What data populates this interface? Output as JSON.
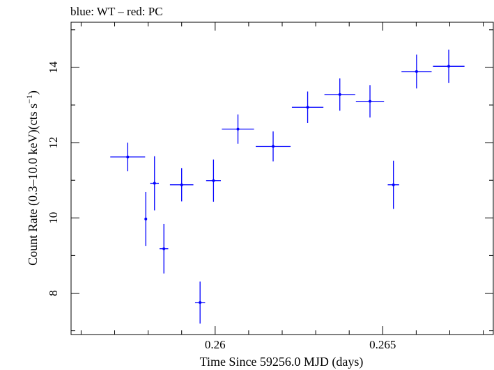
{
  "chart_data": {
    "type": "scatter",
    "title": "blue: WT – red: PC",
    "xlabel": "Time Since 59256.0 MJD (days)",
    "ylabel_main": "Count Rate (0.3–10.0 keV)(cts s",
    "ylabel_sup": "−1",
    "ylabel_close": ")",
    "xlim": [
      0.2557,
      0.2683
    ],
    "ylim": [
      6.9,
      15.2
    ],
    "x_ticks": [
      {
        "value": 0.26,
        "label": "0.26"
      },
      {
        "value": 0.265,
        "label": "0.265"
      }
    ],
    "x_minor_ticks": [
      0.256,
      0.257,
      0.258,
      0.259,
      0.261,
      0.262,
      0.263,
      0.264,
      0.266,
      0.267,
      0.268
    ],
    "y_ticks": [
      {
        "value": 8,
        "label": "8"
      },
      {
        "value": 10,
        "label": "10"
      },
      {
        "value": 12,
        "label": "12"
      },
      {
        "value": 14,
        "label": "14"
      }
    ],
    "y_minor_ticks": [
      7,
      9,
      11,
      13,
      15
    ],
    "grid": false,
    "series": [
      {
        "color": "#0000ff",
        "points": [
          {
            "x": 0.25739,
            "xerr": 0.00052,
            "y": 11.62,
            "yerr": 0.38
          },
          {
            "x": 0.25793,
            "xerr": 3e-05,
            "y": 9.97,
            "yerr": 0.72
          },
          {
            "x": 0.25819,
            "xerr": 0.00013,
            "y": 10.92,
            "yerr": 0.72
          },
          {
            "x": 0.25847,
            "xerr": 0.00013,
            "y": 9.18,
            "yerr": 0.66
          },
          {
            "x": 0.259,
            "xerr": 0.00035,
            "y": 10.88,
            "yerr": 0.44
          },
          {
            "x": 0.25955,
            "xerr": 0.00015,
            "y": 7.75,
            "yerr": 0.56
          },
          {
            "x": 0.25995,
            "xerr": 0.00022,
            "y": 10.99,
            "yerr": 0.56
          },
          {
            "x": 0.26068,
            "xerr": 0.00048,
            "y": 12.36,
            "yerr": 0.39
          },
          {
            "x": 0.26173,
            "xerr": 0.00052,
            "y": 11.9,
            "yerr": 0.4
          },
          {
            "x": 0.26276,
            "xerr": 0.00047,
            "y": 12.94,
            "yerr": 0.42
          },
          {
            "x": 0.26372,
            "xerr": 0.00046,
            "y": 13.28,
            "yerr": 0.43
          },
          {
            "x": 0.26462,
            "xerr": 0.00042,
            "y": 13.1,
            "yerr": 0.43
          },
          {
            "x": 0.26532,
            "xerr": 0.00017,
            "y": 10.88,
            "yerr": 0.64
          },
          {
            "x": 0.26601,
            "xerr": 0.00045,
            "y": 13.89,
            "yerr": 0.45
          },
          {
            "x": 0.26697,
            "xerr": 0.00047,
            "y": 14.03,
            "yerr": 0.44
          }
        ]
      }
    ]
  }
}
